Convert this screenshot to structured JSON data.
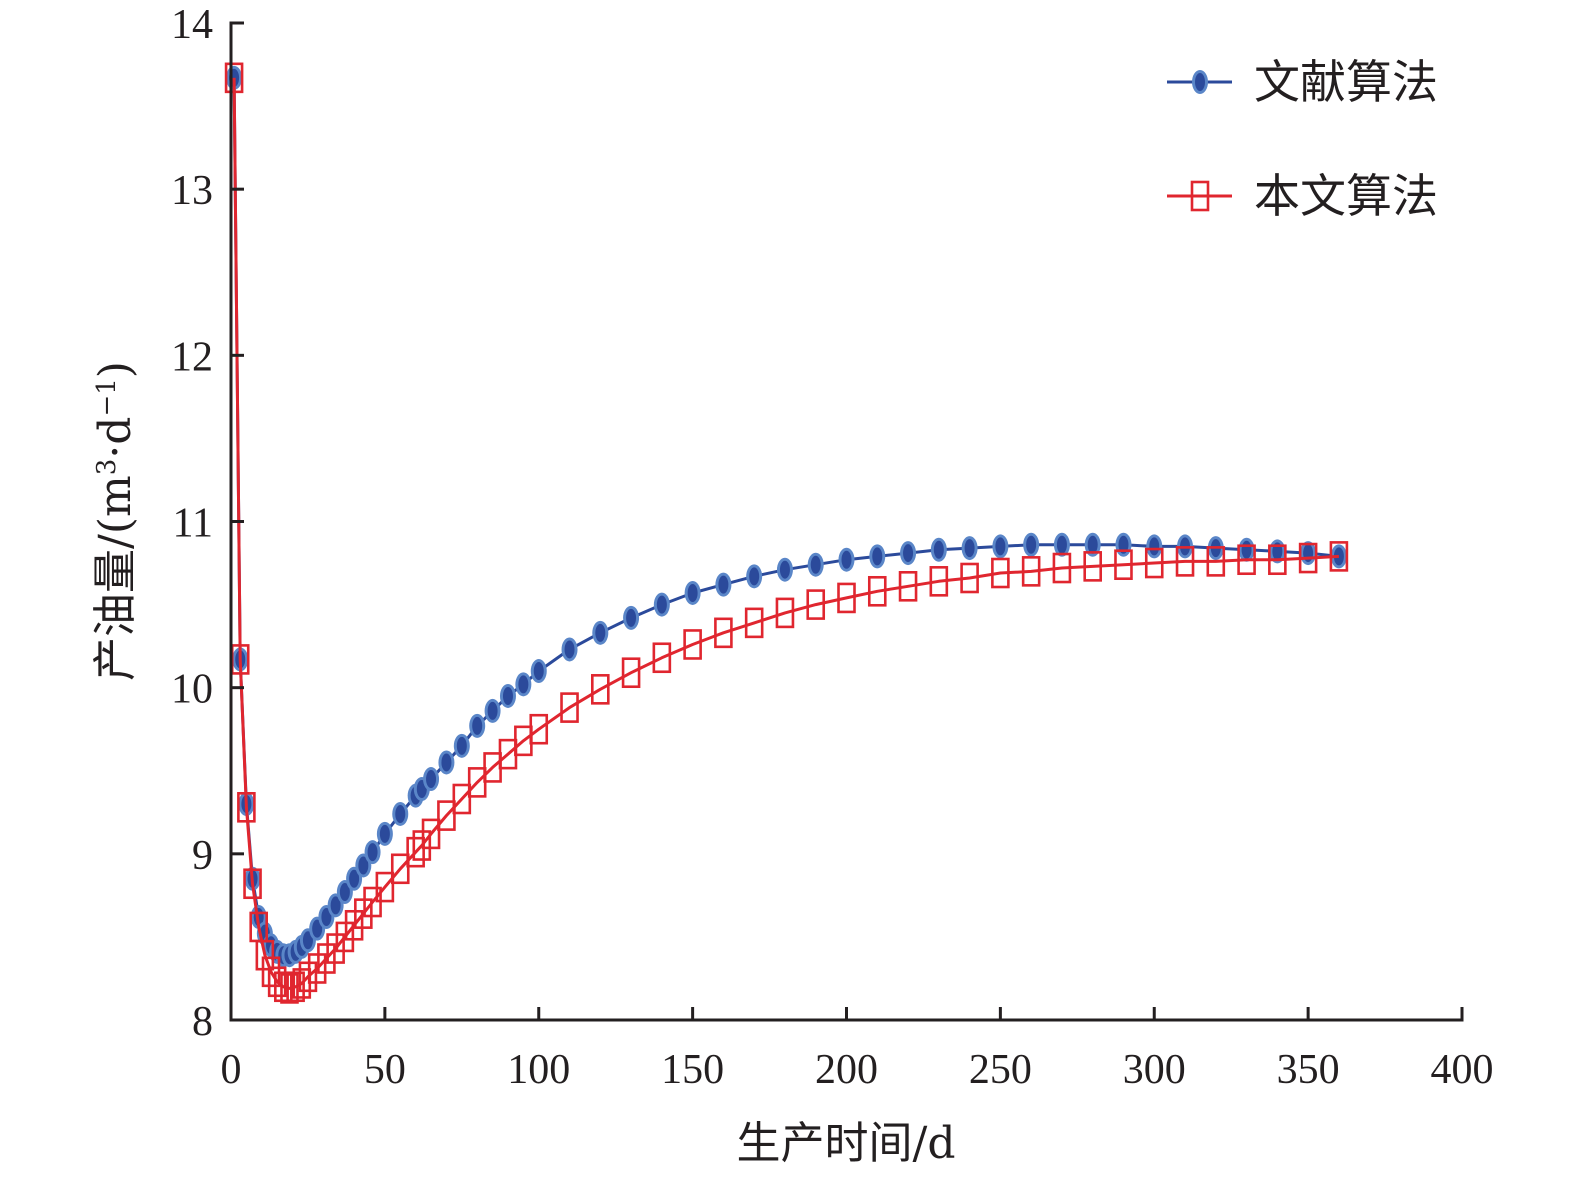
{
  "chart_data": {
    "type": "line",
    "title": "",
    "xlabel": "生产时间/d",
    "ylabel": "产油量/(m³·d⁻¹)",
    "ylabel_parts": {
      "main": "产油量/(m",
      "sup1": "3",
      "mid": "·d",
      "sup2": "−1",
      "end": ")"
    },
    "xlim": [
      0,
      400
    ],
    "ylim": [
      8,
      14
    ],
    "xticks": [
      0,
      50,
      100,
      150,
      200,
      250,
      300,
      350,
      400
    ],
    "yticks": [
      8,
      9,
      10,
      11,
      12,
      13,
      14
    ],
    "grid": false,
    "legend_position": "top-right",
    "x": [
      1,
      3,
      5,
      7,
      9,
      11,
      13,
      15,
      17,
      19,
      21,
      23,
      25,
      28,
      31,
      34,
      37,
      40,
      43,
      46,
      50,
      55,
      60,
      62,
      65,
      70,
      75,
      80,
      85,
      90,
      95,
      100,
      110,
      120,
      130,
      140,
      150,
      160,
      170,
      180,
      190,
      200,
      210,
      220,
      230,
      240,
      250,
      260,
      270,
      280,
      290,
      300,
      310,
      320,
      330,
      340,
      350,
      360
    ],
    "series": [
      {
        "name": "文献算法",
        "color": "#2b4a9b",
        "marker": "ellipse",
        "marker_fill": "#2b4a9b",
        "marker_edge": "#5a86c8",
        "values": [
          13.67,
          10.17,
          9.3,
          8.85,
          8.62,
          8.52,
          8.45,
          8.41,
          8.39,
          8.39,
          8.41,
          8.44,
          8.48,
          8.55,
          8.62,
          8.69,
          8.77,
          8.85,
          8.93,
          9.01,
          9.12,
          9.24,
          9.35,
          9.39,
          9.45,
          9.55,
          9.65,
          9.77,
          9.86,
          9.95,
          10.02,
          10.1,
          10.23,
          10.33,
          10.42,
          10.5,
          10.57,
          10.62,
          10.67,
          10.71,
          10.74,
          10.77,
          10.79,
          10.81,
          10.83,
          10.84,
          10.85,
          10.86,
          10.86,
          10.86,
          10.86,
          10.85,
          10.85,
          10.84,
          10.83,
          10.82,
          10.81,
          10.79
        ]
      },
      {
        "name": "本文算法",
        "color": "#e0262f",
        "marker": "square",
        "marker_fill": "none",
        "marker_edge": "#e0262f",
        "values": [
          13.67,
          10.17,
          9.28,
          8.82,
          8.56,
          8.39,
          8.29,
          8.23,
          8.2,
          8.19,
          8.2,
          8.22,
          8.26,
          8.31,
          8.37,
          8.43,
          8.5,
          8.57,
          8.64,
          8.71,
          8.8,
          8.91,
          9.01,
          9.05,
          9.12,
          9.23,
          9.33,
          9.43,
          9.52,
          9.6,
          9.68,
          9.75,
          9.88,
          9.99,
          10.09,
          10.18,
          10.26,
          10.33,
          10.39,
          10.45,
          10.5,
          10.54,
          10.58,
          10.61,
          10.64,
          10.66,
          10.69,
          10.7,
          10.72,
          10.73,
          10.74,
          10.75,
          10.76,
          10.76,
          10.77,
          10.77,
          10.78,
          10.79
        ]
      }
    ]
  }
}
